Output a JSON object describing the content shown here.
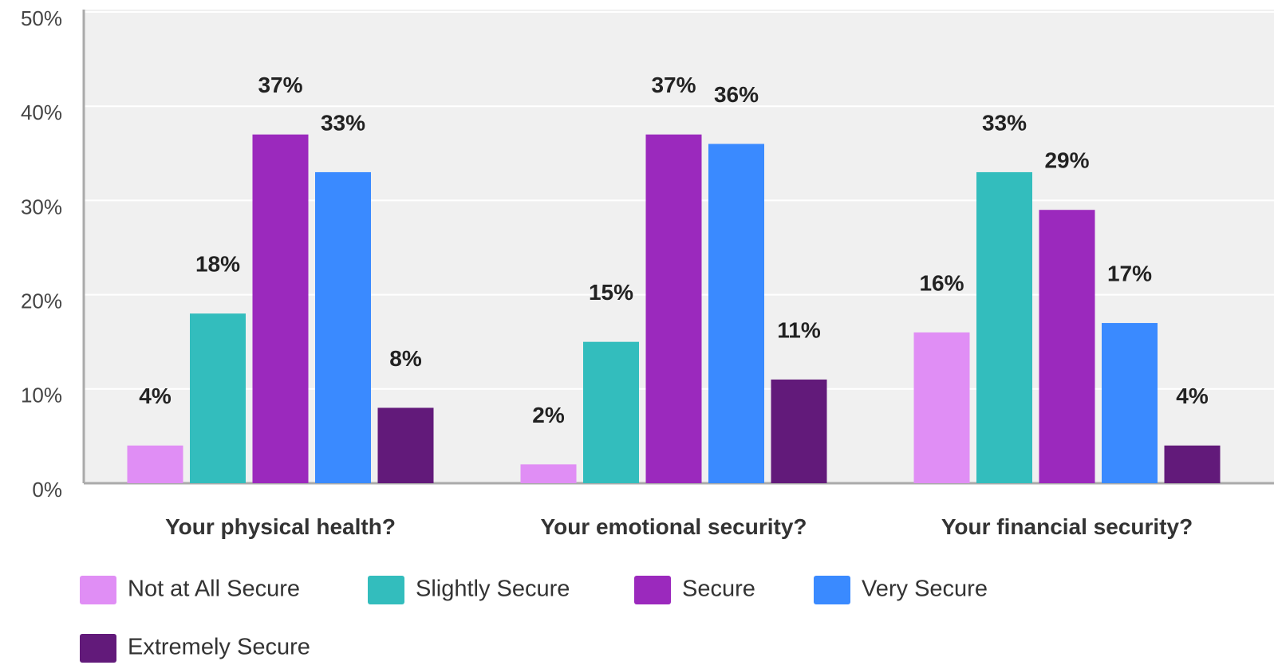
{
  "chart_data": {
    "type": "bar",
    "categories": [
      "Your physical health?",
      "Your emotional security?",
      "Your financial security?"
    ],
    "series": [
      {
        "name": "Not at All Secure",
        "color": "#e08ef5",
        "values": [
          4,
          2,
          16
        ],
        "value_labels": [
          "4%",
          "2%",
          "16%"
        ]
      },
      {
        "name": "Slightly Secure",
        "color": "#33bdbd",
        "values": [
          18,
          15,
          33
        ],
        "value_labels": [
          "18%",
          "15%",
          "33%"
        ]
      },
      {
        "name": "Secure",
        "color": "#9b29bd",
        "values": [
          37,
          37,
          29
        ],
        "value_labels": [
          "37%",
          "37%",
          "29%"
        ]
      },
      {
        "name": "Very Secure",
        "color": "#3a8aff",
        "values": [
          33,
          36,
          17
        ],
        "value_labels": [
          "33%",
          "36%",
          "17%"
        ]
      },
      {
        "name": "Extremely Secure",
        "color": "#621a7a",
        "values": [
          8,
          11,
          4
        ],
        "value_labels": [
          "8%",
          "11%",
          "4%"
        ]
      }
    ],
    "ylim": [
      0,
      50
    ],
    "yticks": [
      {
        "value": 0,
        "label": "0%"
      },
      {
        "value": 10,
        "label": "10%"
      },
      {
        "value": 20,
        "label": "20%"
      },
      {
        "value": 30,
        "label": "30%"
      },
      {
        "value": 40,
        "label": "40%"
      },
      {
        "value": 50,
        "label": "50%"
      }
    ],
    "grid": true,
    "legend": "bottom"
  }
}
